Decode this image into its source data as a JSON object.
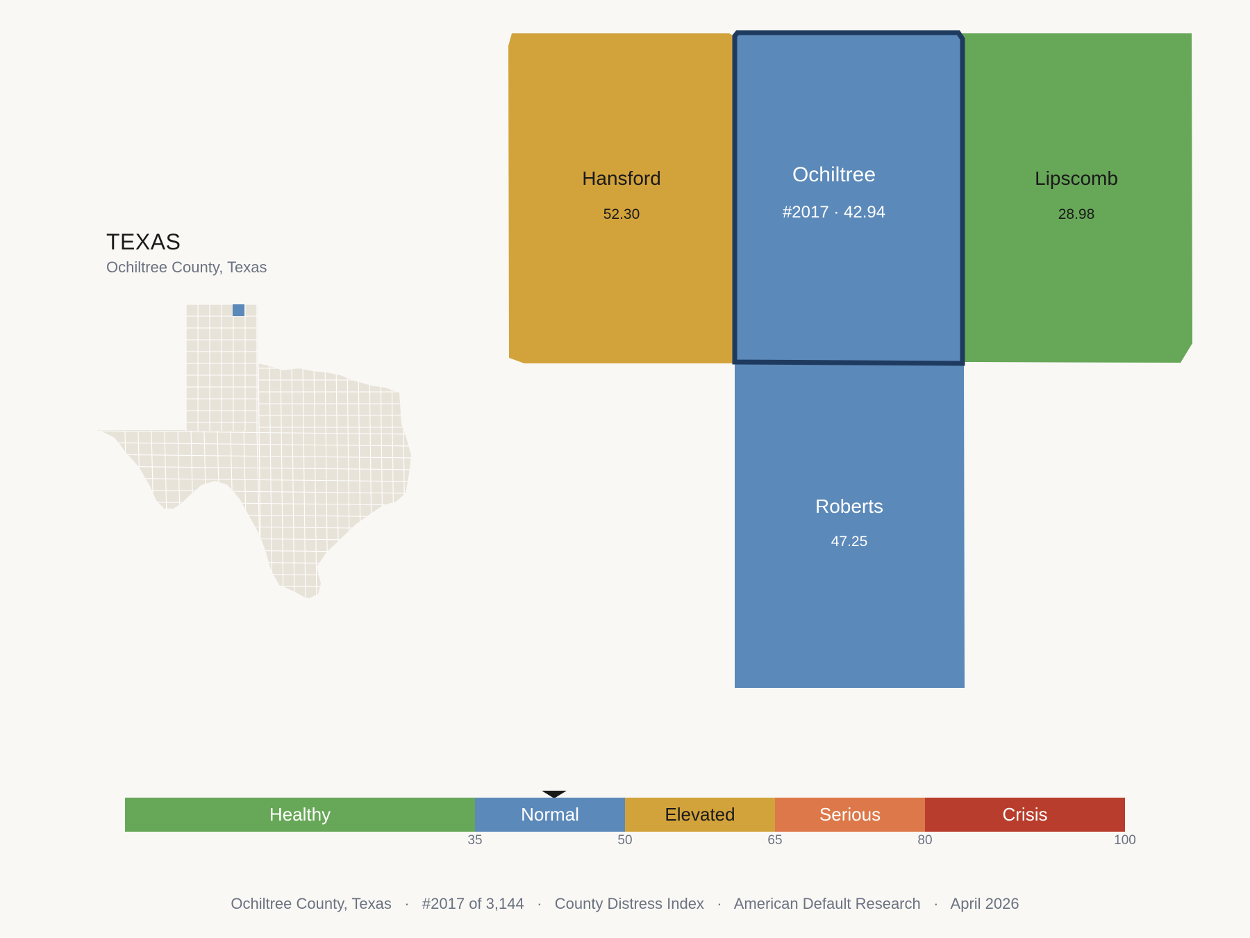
{
  "state": {
    "title": "TEXAS",
    "subtitle": "Ochiltree County, Texas"
  },
  "colors": {
    "healthy": "#67a758",
    "normal": "#5b89b9",
    "elevated": "#d3a33b",
    "serious": "#dc7849",
    "crisis": "#b83d2c",
    "highlight": "#1f3a5f",
    "state_fill": "#e8e3d9",
    "state_border": "#ffffff"
  },
  "counties": [
    {
      "name": "Hansford",
      "value_label": "52.30",
      "category": "elevated"
    },
    {
      "name": "Ochiltree",
      "value_label": "#2017 · 42.94",
      "category": "normal",
      "selected": true
    },
    {
      "name": "Lipscomb",
      "value_label": "28.98",
      "category": "healthy"
    },
    {
      "name": "Roberts",
      "value_label": "47.25",
      "category": "normal"
    }
  ],
  "legend": {
    "segments": [
      {
        "label": "Healthy",
        "from": 0,
        "to": 35,
        "color": "#67a758"
      },
      {
        "label": "Normal",
        "from": 35,
        "to": 50,
        "color": "#5b89b9"
      },
      {
        "label": "Elevated",
        "from": 50,
        "to": 65,
        "color": "#d3a33b"
      },
      {
        "label": "Serious",
        "from": 65,
        "to": 80,
        "color": "#dc7849"
      },
      {
        "label": "Crisis",
        "from": 80,
        "to": 100,
        "color": "#b83d2c"
      }
    ],
    "ticks": [
      "35",
      "50",
      "65",
      "80",
      "100"
    ],
    "marker_value": 42.94
  },
  "footer": {
    "county": "Ochiltree County, Texas",
    "rank": "#2017 of 3,144",
    "index": "County Distress Index",
    "source": "American Default Research",
    "date": "April 2026",
    "separator": "·"
  }
}
